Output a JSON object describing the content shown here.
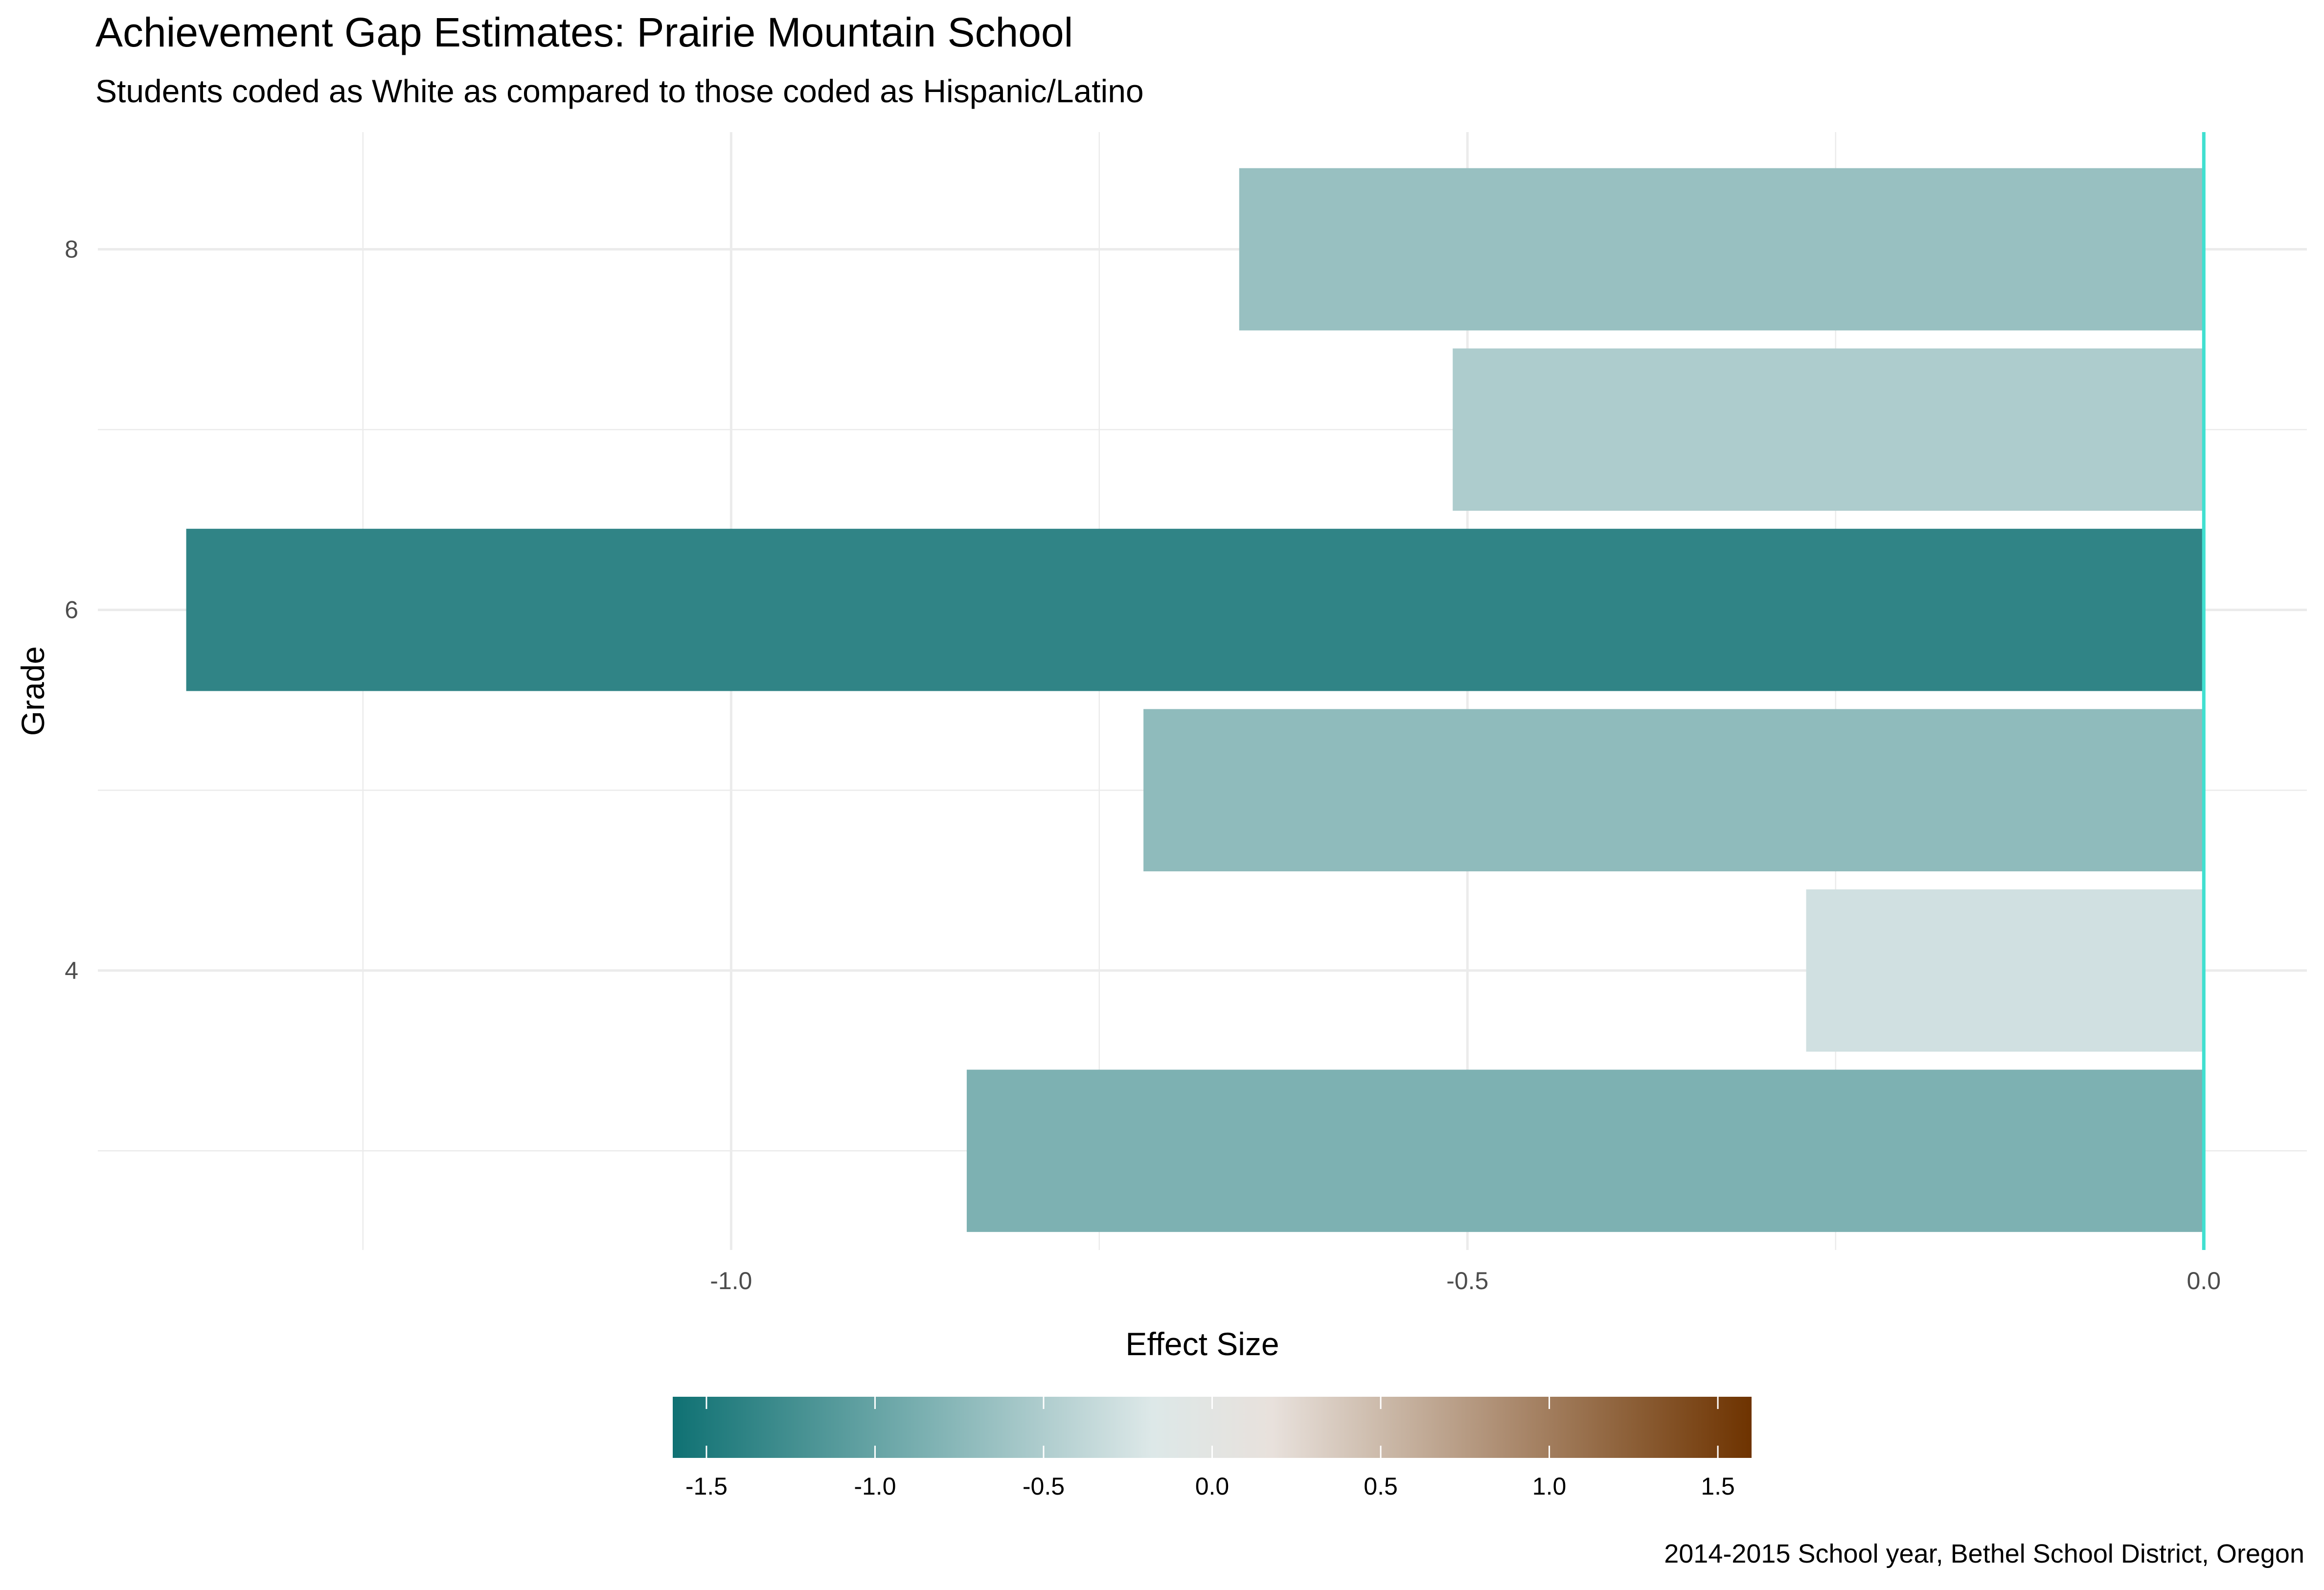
{
  "chart_data": {
    "type": "bar",
    "orientation": "horizontal",
    "title": "Achievement Gap Estimates: Prairie Mountain School",
    "subtitle": "Students coded as White as compared to those coded as Hispanic/Latino",
    "caption": "2014-2015 School year, Bethel School District, Oregon",
    "xlabel": "Effect Size",
    "ylabel": "Grade",
    "categories": [
      3,
      4,
      5,
      6,
      7,
      8
    ],
    "values": [
      -0.84,
      -0.27,
      -0.72,
      -1.37,
      -0.51,
      -0.655
    ],
    "xlim": [
      -1.43,
      0.07
    ],
    "ylim": [
      2.45,
      8.65
    ],
    "x_ticks": [
      -1.0,
      -0.5,
      0.0
    ],
    "x_tick_labels": [
      "-1.0",
      "-0.5",
      "0.0"
    ],
    "y_ticks": [
      4,
      6,
      8
    ],
    "y_tick_labels": [
      "4",
      "6",
      "8"
    ],
    "reference_line": {
      "x": 0,
      "color": "#40e0d0"
    },
    "grid": true,
    "colorbar": {
      "position": "bottom",
      "range": [
        -1.6,
        1.6
      ],
      "ticks": [
        -1.5,
        -1.0,
        -0.5,
        0.0,
        0.5,
        1.0,
        1.5
      ],
      "tick_labels": [
        "-1.5",
        "-1.0",
        "-0.5",
        "0.0",
        "0.5",
        "1.0",
        "1.5"
      ],
      "low_color": "#0f7173",
      "mid_color": "#f7f7f7",
      "high_color": "#6e3300"
    }
  }
}
